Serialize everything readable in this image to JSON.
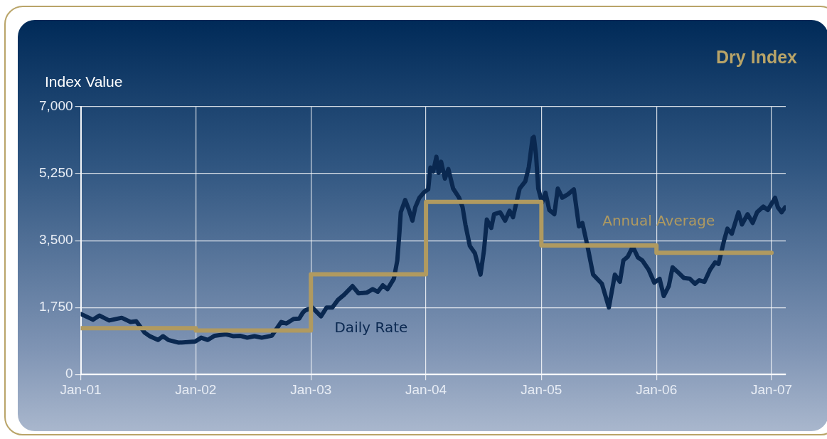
{
  "chart_data": {
    "type": "line",
    "title": "Dry Index",
    "ylabel": "Index Value",
    "xlim": [
      "2001-01-01",
      "2007-02-15"
    ],
    "xticks": [
      {
        "value": "2001-01-01",
        "label": "Jan-01"
      },
      {
        "value": "2002-01-01",
        "label": "Jan-02"
      },
      {
        "value": "2003-01-01",
        "label": "Jan-03"
      },
      {
        "value": "2004-01-01",
        "label": "Jan-04"
      },
      {
        "value": "2005-01-01",
        "label": "Jan-05"
      },
      {
        "value": "2006-01-01",
        "label": "Jan-06"
      },
      {
        "value": "2007-01-01",
        "label": "Jan-07"
      }
    ],
    "ylim": [
      0,
      7000
    ],
    "yticks": [
      0,
      {
        "value": 1750,
        "label": "1,750"
      },
      {
        "value": 3500,
        "label": "3,500"
      },
      {
        "value": 5250,
        "label": "5,250"
      },
      {
        "value": 7000,
        "label": "7,000"
      }
    ],
    "grid": true,
    "legend": false,
    "marker": "none",
    "line_style": "solid",
    "series": [
      {
        "name": "Daily Rate",
        "color": "#0a2850",
        "type": "line",
        "x": [
          "2001-01-01",
          "2001-02-09",
          "2001-03-01",
          "2001-04-01",
          "2001-05-11",
          "2001-06-08",
          "2001-06-26",
          "2001-07-23",
          "2001-08-08",
          "2001-09-03",
          "2001-09-19",
          "2001-10-06",
          "2001-11-08",
          "2001-12-30",
          "2002-01-18",
          "2002-02-08",
          "2002-03-01",
          "2002-04-06",
          "2002-04-29",
          "2002-05-21",
          "2002-06-13",
          "2002-07-06",
          "2002-07-29",
          "2002-08-30",
          "2002-09-13",
          "2002-09-29",
          "2002-10-15",
          "2002-11-07",
          "2002-11-25",
          "2002-12-06",
          "2002-12-13",
          "2003-01-05",
          "2003-02-02",
          "2003-02-20",
          "2003-03-10",
          "2003-03-28",
          "2003-04-16",
          "2003-05-13",
          "2003-06-01",
          "2003-06-28",
          "2003-07-16",
          "2003-08-01",
          "2003-08-17",
          "2003-09-01",
          "2003-09-21",
          "2003-10-02",
          "2003-10-09",
          "2003-10-13",
          "2003-10-27",
          "2003-11-08",
          "2003-11-19",
          "2003-11-28",
          "2003-12-11",
          "2003-12-27",
          "2004-01-08",
          "2004-01-15",
          "2004-01-24",
          "2004-02-03",
          "2004-02-10",
          "2004-02-18",
          "2004-03-01",
          "2004-03-12",
          "2004-03-27",
          "2004-04-15",
          "2004-04-26",
          "2004-05-05",
          "2004-05-19",
          "2004-06-04",
          "2004-06-22",
          "2004-07-03",
          "2004-07-12",
          "2004-07-26",
          "2004-08-04",
          "2004-08-23",
          "2004-09-08",
          "2004-09-22",
          "2004-10-03",
          "2004-10-24",
          "2004-11-11",
          "2004-11-22",
          "2004-12-04",
          "2004-12-08",
          "2004-12-15",
          "2004-12-22",
          "2005-01-03",
          "2005-01-14",
          "2005-01-26",
          "2005-02-11",
          "2005-02-22",
          "2005-03-08",
          "2005-03-26",
          "2005-04-14",
          "2005-04-30",
          "2005-05-11",
          "2005-05-27",
          "2005-06-14",
          "2005-07-12",
          "2005-08-03",
          "2005-08-22",
          "2005-09-07",
          "2005-09-18",
          "2005-10-02",
          "2005-10-18",
          "2005-11-03",
          "2005-11-17",
          "2005-12-07",
          "2005-12-25",
          "2006-01-11",
          "2006-01-24",
          "2006-02-09",
          "2006-02-21",
          "2006-03-09",
          "2006-03-29",
          "2006-04-17",
          "2006-05-03",
          "2006-05-16",
          "2006-06-02",
          "2006-06-20",
          "2006-07-06",
          "2006-07-17",
          "2006-08-03",
          "2006-08-14",
          "2006-08-28",
          "2006-09-18",
          "2006-09-29",
          "2006-10-17",
          "2006-11-02",
          "2006-11-16",
          "2006-12-06",
          "2006-12-20",
          "2007-01-12",
          "2007-01-21",
          "2007-02-02",
          "2007-02-13"
        ],
        "values": [
          1580,
          1430,
          1540,
          1410,
          1480,
          1370,
          1390,
          1090,
          1000,
          900,
          1000,
          900,
          830,
          860,
          960,
          900,
          1010,
          1050,
          1000,
          1010,
          960,
          1000,
          960,
          1010,
          1180,
          1370,
          1330,
          1450,
          1460,
          1610,
          1670,
          1750,
          1520,
          1750,
          1750,
          1950,
          2080,
          2310,
          2120,
          2140,
          2230,
          2160,
          2330,
          2230,
          2500,
          2980,
          3740,
          4240,
          4560,
          4300,
          4020,
          4370,
          4620,
          4770,
          4840,
          5410,
          5310,
          5690,
          5270,
          5560,
          5120,
          5370,
          4860,
          4620,
          4370,
          3920,
          3360,
          3170,
          2610,
          3250,
          4050,
          3830,
          4190,
          4240,
          4020,
          4280,
          4110,
          4860,
          5050,
          5420,
          6180,
          6210,
          5740,
          4860,
          4490,
          4750,
          4300,
          4190,
          4860,
          4620,
          4710,
          4840,
          3870,
          3960,
          3360,
          2610,
          2370,
          1750,
          2610,
          2420,
          2980,
          3080,
          3340,
          3060,
          2980,
          2740,
          2400,
          2500,
          2050,
          2310,
          2800,
          2680,
          2520,
          2500,
          2370,
          2460,
          2420,
          2740,
          2930,
          2890,
          3490,
          3810,
          3680,
          4240,
          3920,
          4190,
          3960,
          4240,
          4390,
          4300,
          4620,
          4370,
          4240,
          4370
        ]
      },
      {
        "name": "Annual Average",
        "color": "#b09a60",
        "type": "step",
        "x": [
          "2001-01-01",
          "2002-01-01",
          "2003-01-01",
          "2004-01-01",
          "2005-01-01",
          "2006-01-01",
          "2007-01-01"
        ],
        "values": [
          1210,
          1150,
          2620,
          4510,
          3370,
          3180,
          3180
        ]
      }
    ]
  }
}
